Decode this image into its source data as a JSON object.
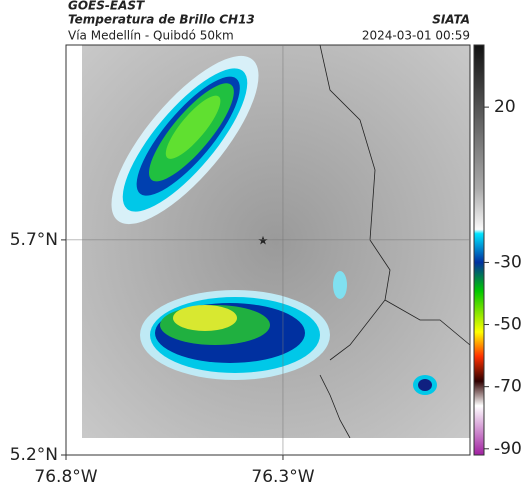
{
  "header": {
    "satellite": "GOES-EAST",
    "product": "Temperatura de Brillo CH13",
    "source": "SIATA",
    "route": "Vía Medellín - Quibdó 50km",
    "timestamp": "2024-03-01 00:59"
  },
  "map": {
    "xlim": [
      -76.8,
      -75.869
    ],
    "ylim": [
      5.2,
      6.153
    ],
    "xticks": [
      {
        "value": -76.8,
        "label": "76.8°W"
      },
      {
        "value": -76.3,
        "label": "76.3°W"
      }
    ],
    "yticks": [
      {
        "value": 5.2,
        "label": "5.2°N"
      },
      {
        "value": 5.7,
        "label": "5.7°N"
      }
    ]
  },
  "colorbar": {
    "lim": [
      -92,
      40
    ],
    "ticks": [
      20,
      -30,
      -50,
      -70,
      -90
    ]
  }
}
